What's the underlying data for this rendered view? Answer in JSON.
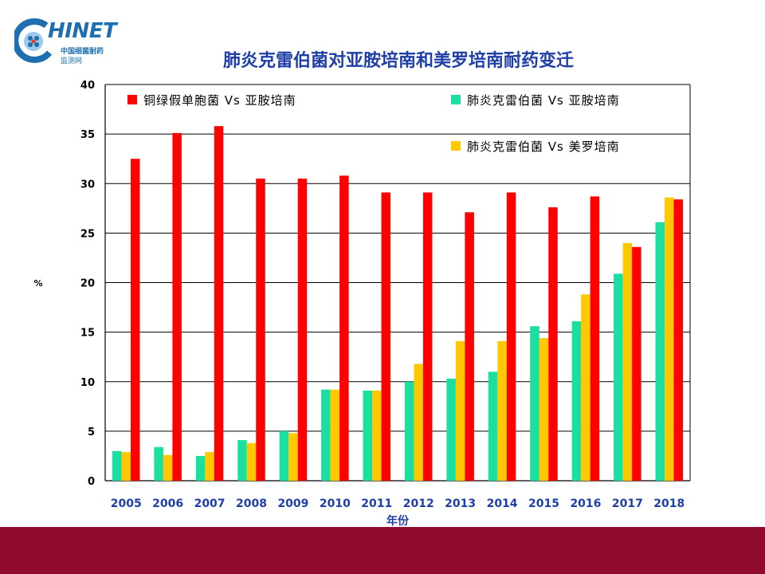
{
  "logo": {
    "word": "HINET",
    "sub1": "中国细菌耐药",
    "sub2": "监测网"
  },
  "chart_data": {
    "type": "bar",
    "title": "肺炎克雷伯菌对亚胺培南和美罗培南耐药变迁",
    "xlabel": "年份",
    "ylabel": "%",
    "ylim": [
      0,
      40
    ],
    "yticks": [
      0,
      5,
      10,
      15,
      20,
      25,
      30,
      35,
      40
    ],
    "grid": true,
    "categories": [
      "2005",
      "2006",
      "2007",
      "2008",
      "2009",
      "2010",
      "2011",
      "2012",
      "2013",
      "2014",
      "2015",
      "2016",
      "2017",
      "2018"
    ],
    "series": [
      {
        "name": "肺炎克雷伯菌 Vs 亚胺培南",
        "color": "#19e0a0",
        "values": [
          3.0,
          3.4,
          2.5,
          4.1,
          5.0,
          9.2,
          9.1,
          10.0,
          10.3,
          11.0,
          15.6,
          16.1,
          20.9,
          26.1
        ]
      },
      {
        "name": "肺炎克雷伯菌 Vs 美罗培南",
        "color": "#ffc800",
        "values": [
          2.9,
          2.6,
          2.9,
          3.8,
          4.8,
          9.2,
          9.1,
          11.8,
          14.1,
          14.1,
          14.4,
          18.8,
          24.0,
          28.6
        ]
      },
      {
        "name": "铜绿假单胞菌 Vs 亚胺培南",
        "color": "#ff0000",
        "values": [
          32.5,
          35.1,
          35.8,
          30.5,
          30.5,
          30.8,
          29.1,
          29.1,
          27.1,
          29.1,
          27.6,
          28.7,
          23.6,
          28.4
        ]
      }
    ],
    "legend": [
      {
        "series": 2,
        "label": "铜绿假单胞菌 Vs 亚胺培南",
        "position": "top-left"
      },
      {
        "series": 0,
        "label": "肺炎克雷伯菌 Vs 亚胺培南",
        "position": "top-right"
      },
      {
        "series": 1,
        "label": "肺炎克雷伯菌 Vs 美罗培南",
        "position": "top-right-lower"
      }
    ]
  }
}
